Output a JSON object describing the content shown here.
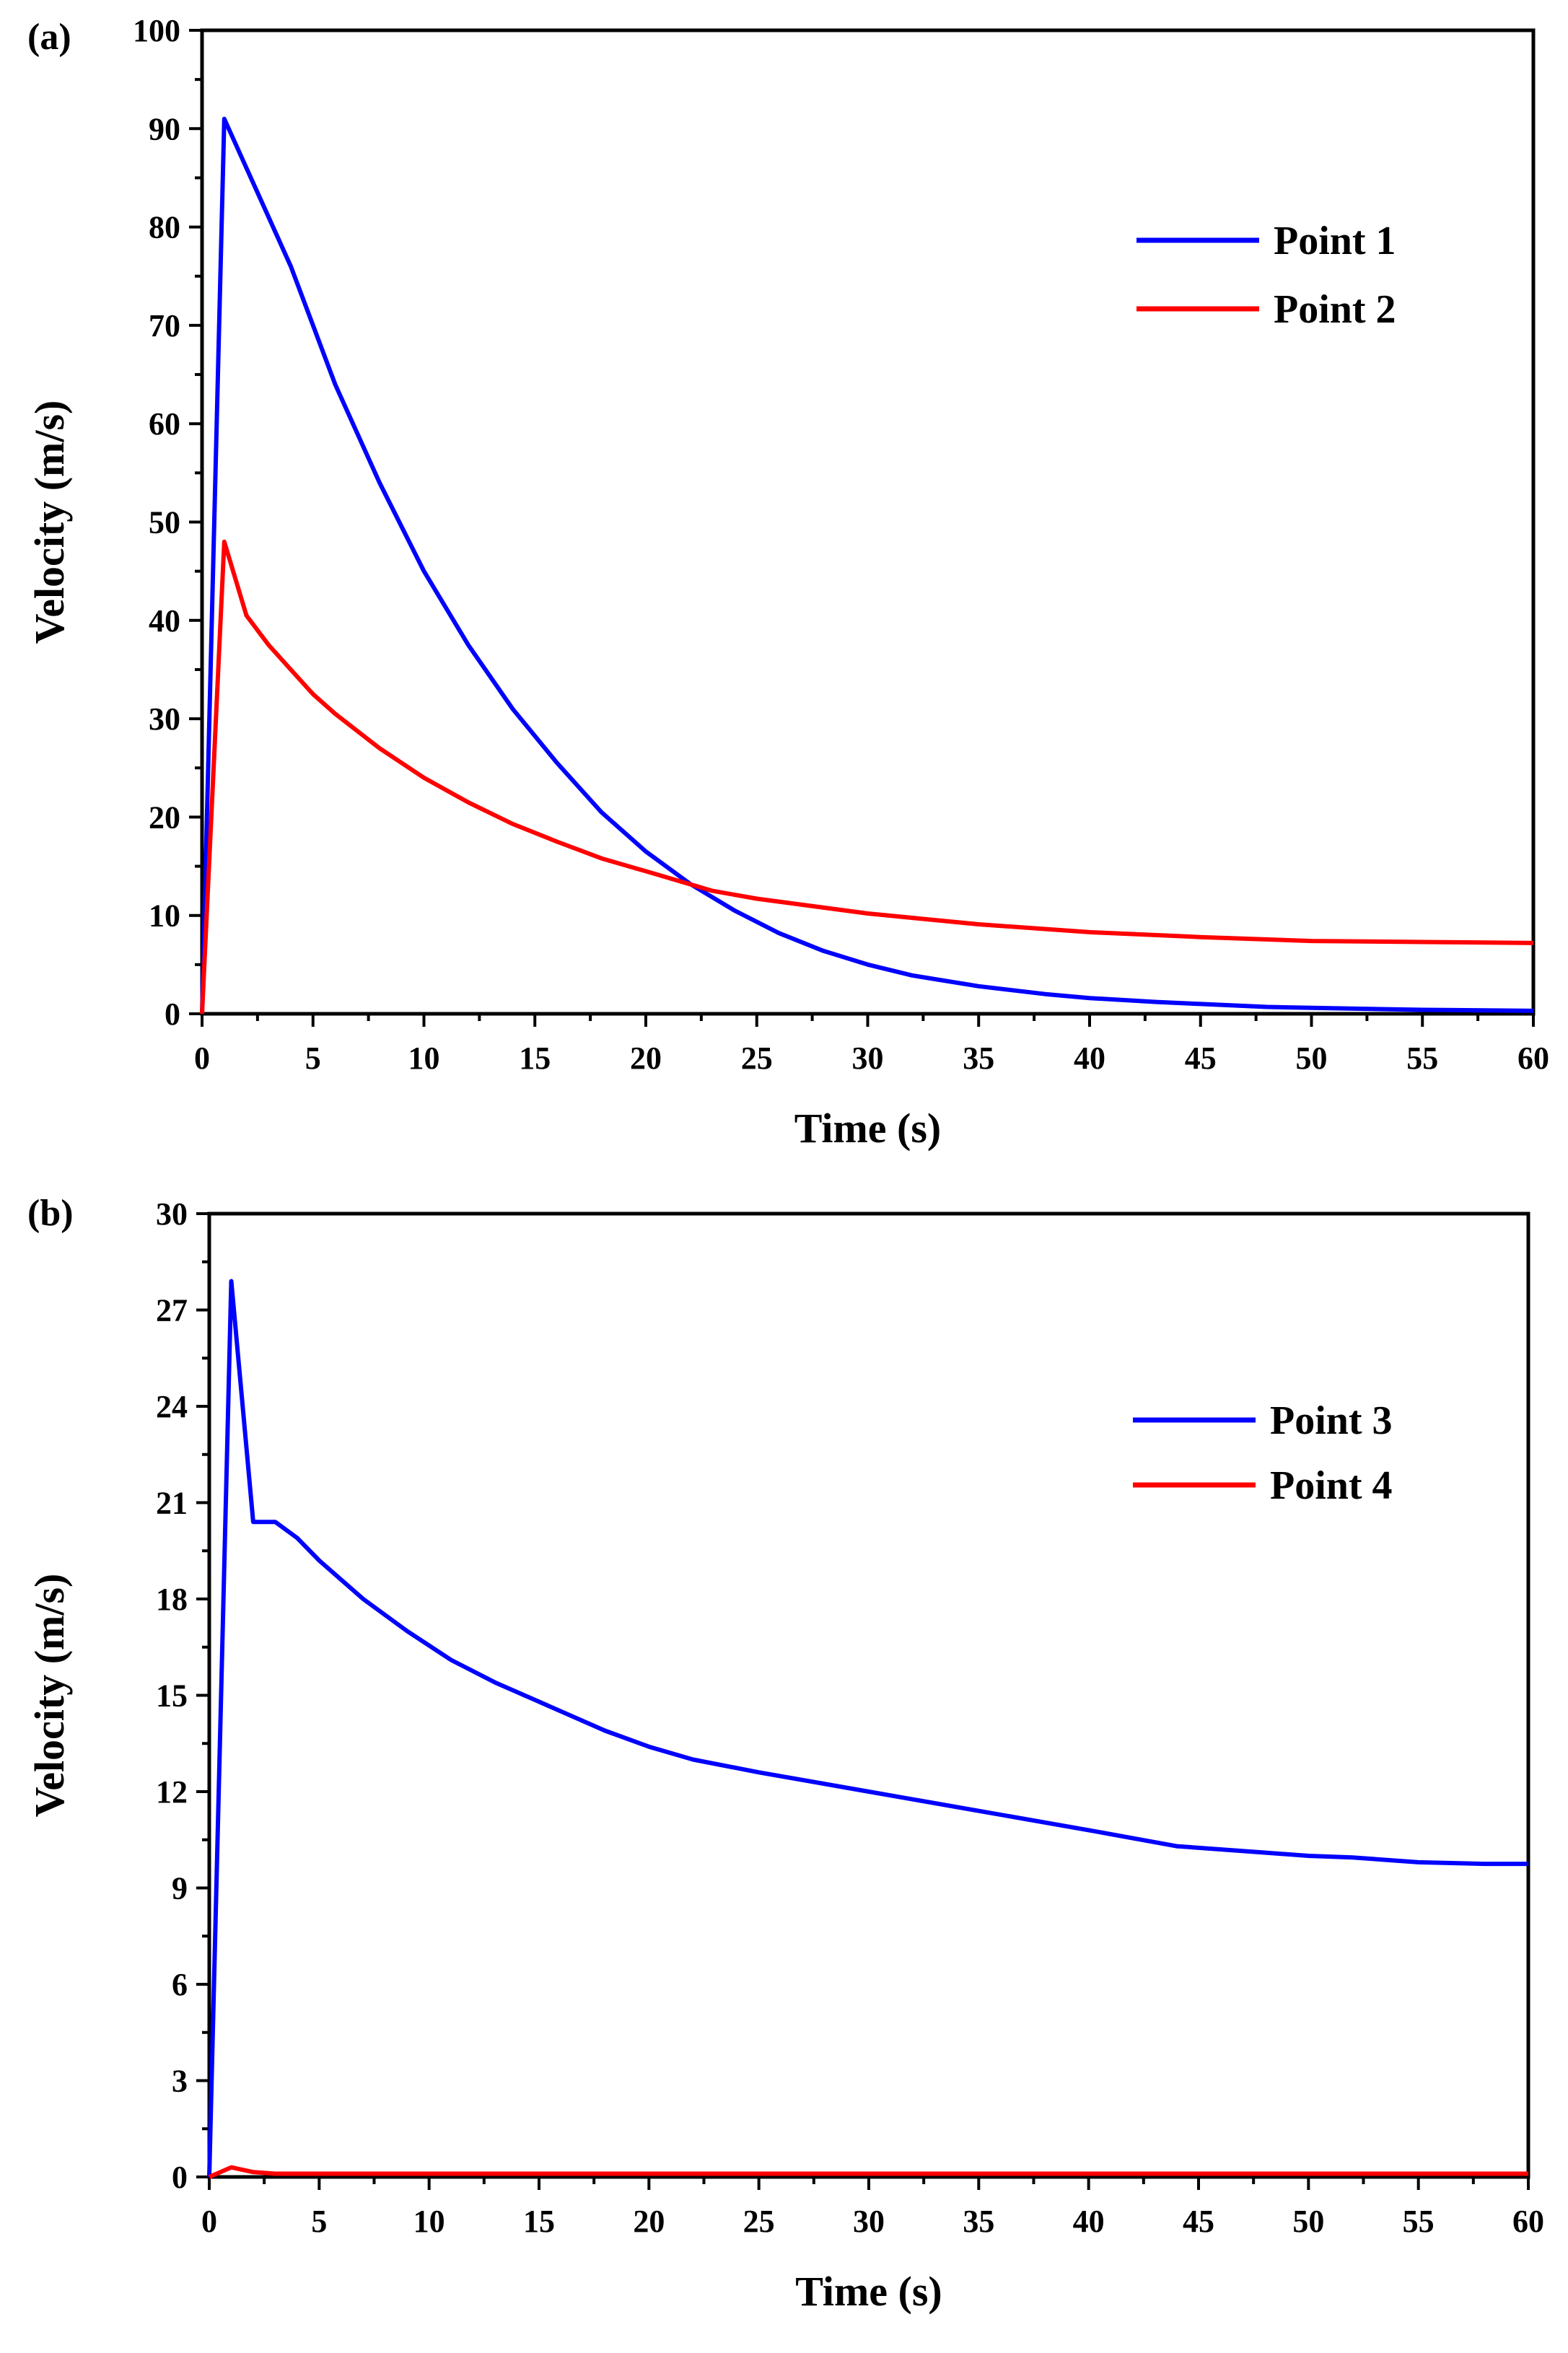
{
  "chart_data": [
    {
      "panel": "(a)",
      "type": "line",
      "xlabel": "Time (s)",
      "ylabel": "Velocity (m/s)",
      "xlim": [
        0,
        60
      ],
      "ylim": [
        0,
        100
      ],
      "x_ticks": [
        0,
        5,
        10,
        15,
        20,
        25,
        30,
        35,
        40,
        45,
        50,
        55,
        60
      ],
      "y_ticks": [
        0,
        10,
        20,
        30,
        40,
        50,
        60,
        70,
        80,
        90,
        100
      ],
      "legend_position": "top-right",
      "series": [
        {
          "name": "Point 1",
          "color": "#0000ff",
          "x": [
            0,
            1,
            2,
            3,
            4,
            5,
            6,
            8,
            10,
            12,
            14,
            16,
            18,
            20,
            22,
            24,
            26,
            28,
            30,
            32,
            35,
            38,
            40,
            43,
            45,
            48,
            50,
            55,
            60
          ],
          "y": [
            0,
            91,
            86,
            81,
            76,
            70,
            64,
            54,
            45,
            37.5,
            31,
            25.5,
            20.5,
            16.5,
            13.2,
            10.5,
            8.2,
            6.4,
            5,
            3.9,
            2.8,
            2,
            1.6,
            1.2,
            1,
            0.7,
            0.6,
            0.4,
            0.3
          ]
        },
        {
          "name": "Point 2",
          "color": "#ff0000",
          "x": [
            0,
            1,
            2,
            3,
            4,
            5,
            6,
            8,
            10,
            12,
            14,
            16,
            18,
            20,
            23,
            25,
            30,
            35,
            40,
            45,
            50,
            55,
            60
          ],
          "y": [
            0,
            48,
            40.5,
            37.5,
            35,
            32.5,
            30.5,
            27,
            24,
            21.5,
            19.3,
            17.5,
            15.8,
            14.5,
            12.5,
            11.7,
            10.2,
            9.1,
            8.3,
            7.8,
            7.4,
            7.3,
            7.2
          ]
        }
      ]
    },
    {
      "panel": "(b)",
      "type": "line",
      "xlabel": "Time (s)",
      "ylabel": "Velocity (m/s)",
      "xlim": [
        0,
        60
      ],
      "ylim": [
        0,
        30
      ],
      "x_ticks": [
        0,
        5,
        10,
        15,
        20,
        25,
        30,
        35,
        40,
        45,
        50,
        55,
        60
      ],
      "y_ticks": [
        0,
        3,
        6,
        9,
        12,
        15,
        18,
        21,
        24,
        27,
        30
      ],
      "legend_position": "top-right",
      "series": [
        {
          "name": "Point 3",
          "color": "#0000ff",
          "x": [
            0,
            1,
            2,
            3,
            4,
            5,
            7,
            9,
            11,
            13,
            15,
            18,
            20,
            22,
            25,
            30,
            35,
            40,
            44,
            48,
            50,
            52,
            55,
            58,
            60
          ],
          "y": [
            0,
            27.9,
            20.4,
            20.4,
            19.9,
            19.2,
            18,
            17,
            16.1,
            15.4,
            14.8,
            13.9,
            13.4,
            13,
            12.6,
            12,
            11.4,
            10.8,
            10.3,
            10.1,
            10,
            9.95,
            9.8,
            9.75,
            9.75
          ]
        },
        {
          "name": "Point 4",
          "color": "#ff0000",
          "x": [
            0,
            1,
            2,
            3,
            60
          ],
          "y": [
            0,
            0.3,
            0.15,
            0.1,
            0.1
          ]
        }
      ]
    }
  ]
}
